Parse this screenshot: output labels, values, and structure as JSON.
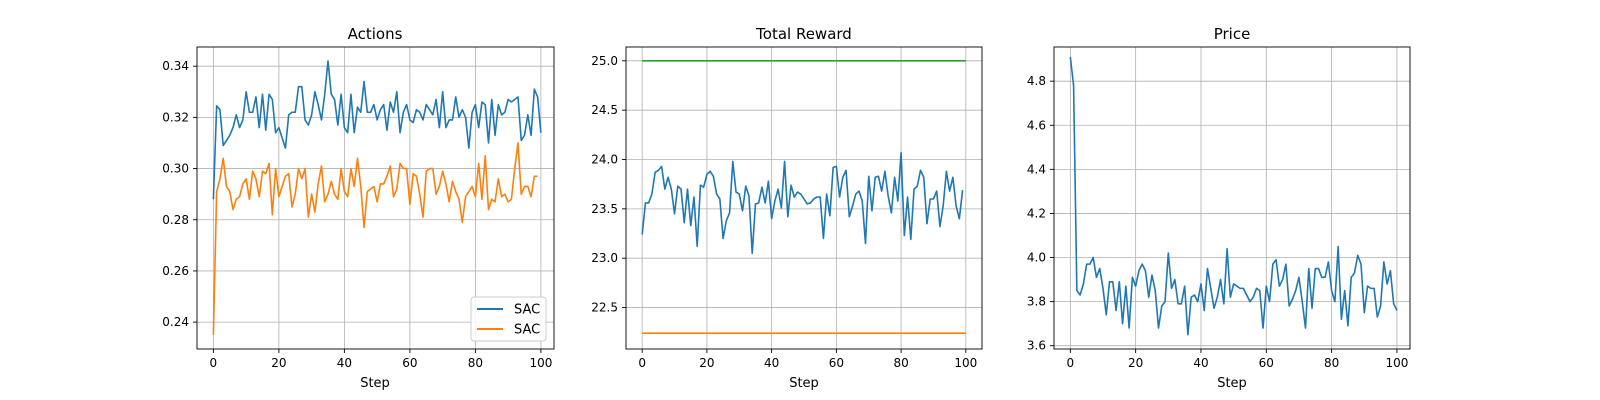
{
  "chart_data": [
    {
      "type": "line",
      "title": "Actions",
      "xlabel": "Step",
      "ylabel": "",
      "xlim": [
        -5,
        104
      ],
      "ylim": [
        0.2295,
        0.3475
      ],
      "xticks": [
        0,
        20,
        40,
        60,
        80,
        100
      ],
      "yticks": [
        0.24,
        0.26,
        0.28,
        0.3,
        0.32,
        0.34
      ],
      "ytick_decimals": 2,
      "grid": true,
      "legend": {
        "placement": "bottom-right",
        "entries": [
          "SAC",
          "SAC"
        ]
      },
      "series": [
        {
          "name": "SAC",
          "color": "#1f77b4",
          "x_start": 0,
          "values": [
            0.288,
            0.3245,
            0.323,
            0.309,
            0.311,
            0.313,
            0.316,
            0.321,
            0.316,
            0.319,
            0.33,
            0.322,
            0.322,
            0.328,
            0.316,
            0.329,
            0.315,
            0.329,
            0.327,
            0.314,
            0.316,
            0.312,
            0.308,
            0.321,
            0.322,
            0.322,
            0.332,
            0.332,
            0.319,
            0.317,
            0.321,
            0.33,
            0.325,
            0.319,
            0.329,
            0.342,
            0.329,
            0.327,
            0.317,
            0.329,
            0.316,
            0.314,
            0.329,
            0.314,
            0.324,
            0.322,
            0.334,
            0.322,
            0.322,
            0.325,
            0.319,
            0.323,
            0.325,
            0.315,
            0.326,
            0.322,
            0.33,
            0.314,
            0.322,
            0.325,
            0.319,
            0.318,
            0.323,
            0.322,
            0.319,
            0.325,
            0.323,
            0.321,
            0.327,
            0.316,
            0.33,
            0.316,
            0.319,
            0.319,
            0.328,
            0.32,
            0.323,
            0.32,
            0.308,
            0.322,
            0.325,
            0.316,
            0.326,
            0.325,
            0.31,
            0.327,
            0.313,
            0.325,
            0.321,
            0.322,
            0.327,
            0.326,
            0.327,
            0.328,
            0.311,
            0.313,
            0.321,
            0.313,
            0.331,
            0.328,
            0.314
          ]
        },
        {
          "name": "SAC",
          "color": "#ff7f0e",
          "x_start": 0,
          "values": [
            0.235,
            0.291,
            0.296,
            0.304,
            0.293,
            0.291,
            0.284,
            0.288,
            0.289,
            0.294,
            0.296,
            0.288,
            0.299,
            0.296,
            0.289,
            0.299,
            0.298,
            0.302,
            0.282,
            0.3,
            0.289,
            0.293,
            0.297,
            0.298,
            0.285,
            0.29,
            0.3,
            0.296,
            0.3,
            0.281,
            0.29,
            0.283,
            0.294,
            0.301,
            0.287,
            0.29,
            0.295,
            0.29,
            0.288,
            0.3,
            0.291,
            0.289,
            0.3,
            0.293,
            0.304,
            0.293,
            0.277,
            0.291,
            0.292,
            0.293,
            0.287,
            0.294,
            0.294,
            0.297,
            0.301,
            0.289,
            0.292,
            0.302,
            0.3,
            0.3,
            0.286,
            0.298,
            0.297,
            0.29,
            0.281,
            0.299,
            0.3,
            0.3,
            0.29,
            0.293,
            0.299,
            0.294,
            0.287,
            0.295,
            0.291,
            0.288,
            0.279,
            0.289,
            0.291,
            0.293,
            0.289,
            0.302,
            0.288,
            0.305,
            0.284,
            0.288,
            0.287,
            0.296,
            0.289,
            0.29,
            0.287,
            0.288,
            0.3,
            0.31,
            0.29,
            0.293,
            0.293,
            0.289,
            0.297,
            0.297
          ]
        }
      ]
    },
    {
      "type": "line",
      "title": "Total Reward",
      "xlabel": "Step",
      "ylabel": "",
      "xlim": [
        -5,
        105
      ],
      "ylim": [
        22.08,
        25.14
      ],
      "xticks": [
        0,
        20,
        40,
        60,
        80,
        100
      ],
      "yticks": [
        22.5,
        23.0,
        23.5,
        24.0,
        24.5,
        25.0
      ],
      "ytick_decimals": 1,
      "grid": true,
      "series": [
        {
          "color": "#2ca02c",
          "x": [
            0,
            100
          ],
          "values": [
            25.0,
            25.0
          ]
        },
        {
          "color": "#ff7f0e",
          "x": [
            0,
            100
          ],
          "values": [
            22.24,
            22.24
          ]
        },
        {
          "color": "#1f77b4",
          "x_start": 0,
          "values": [
            23.24,
            23.56,
            23.56,
            23.65,
            23.87,
            23.89,
            23.93,
            23.7,
            23.82,
            23.7,
            23.45,
            23.73,
            23.7,
            23.36,
            23.7,
            23.33,
            23.62,
            23.12,
            23.74,
            23.72,
            23.85,
            23.88,
            23.83,
            23.65,
            23.6,
            23.2,
            23.38,
            23.46,
            23.98,
            23.67,
            23.65,
            23.48,
            23.73,
            23.63,
            23.05,
            23.55,
            23.56,
            23.72,
            23.56,
            23.78,
            23.4,
            23.58,
            23.7,
            23.51,
            23.98,
            23.42,
            23.74,
            23.62,
            23.67,
            23.65,
            23.6,
            23.55,
            23.56,
            23.6,
            23.62,
            23.62,
            23.2,
            23.65,
            23.43,
            23.92,
            23.93,
            23.62,
            23.82,
            23.89,
            23.42,
            23.53,
            23.65,
            23.68,
            23.58,
            23.15,
            23.83,
            23.48,
            23.82,
            23.83,
            23.68,
            23.88,
            23.63,
            23.46,
            23.82,
            23.58,
            24.07,
            23.23,
            23.62,
            23.19,
            23.7,
            23.73,
            23.89,
            23.82,
            23.35,
            23.6,
            23.6,
            23.68,
            23.32,
            23.53,
            23.88,
            23.68,
            23.82,
            23.53,
            23.4,
            23.69
          ]
        }
      ]
    },
    {
      "type": "line",
      "title": "Price",
      "xlabel": "Step",
      "ylabel": "",
      "xlim": [
        -5,
        104
      ],
      "ylim": [
        3.585,
        4.955
      ],
      "xticks": [
        0,
        20,
        40,
        60,
        80,
        100
      ],
      "yticks": [
        3.6,
        3.8,
        4.0,
        4.2,
        4.4,
        4.6,
        4.8
      ],
      "ytick_decimals": 1,
      "grid": true,
      "series": [
        {
          "color": "#1f77b4",
          "x_start": 0,
          "values": [
            4.91,
            4.78,
            3.85,
            3.83,
            3.88,
            3.97,
            3.97,
            4.0,
            3.91,
            3.95,
            3.86,
            3.74,
            3.89,
            3.89,
            3.76,
            3.89,
            3.7,
            3.87,
            3.68,
            3.91,
            3.87,
            3.94,
            3.97,
            3.94,
            3.82,
            3.92,
            3.85,
            3.68,
            3.78,
            3.8,
            4.02,
            3.86,
            3.9,
            3.79,
            3.79,
            3.87,
            3.65,
            3.82,
            3.83,
            3.8,
            3.88,
            3.76,
            3.95,
            3.86,
            3.77,
            3.82,
            3.9,
            3.79,
            4.04,
            3.82,
            3.88,
            3.87,
            3.86,
            3.86,
            3.83,
            3.8,
            3.82,
            3.86,
            3.85,
            3.68,
            3.87,
            3.8,
            3.97,
            3.99,
            3.87,
            3.9,
            3.97,
            3.78,
            3.81,
            3.85,
            3.91,
            3.8,
            3.68,
            3.95,
            3.77,
            3.95,
            3.95,
            3.91,
            3.91,
            3.98,
            3.85,
            3.8,
            4.05,
            3.72,
            3.85,
            3.69,
            3.91,
            3.93,
            4.01,
            3.97,
            3.75,
            3.87,
            3.86,
            3.86,
            3.73,
            3.78,
            3.98,
            3.88,
            3.94,
            3.79,
            3.76
          ]
        }
      ]
    }
  ]
}
